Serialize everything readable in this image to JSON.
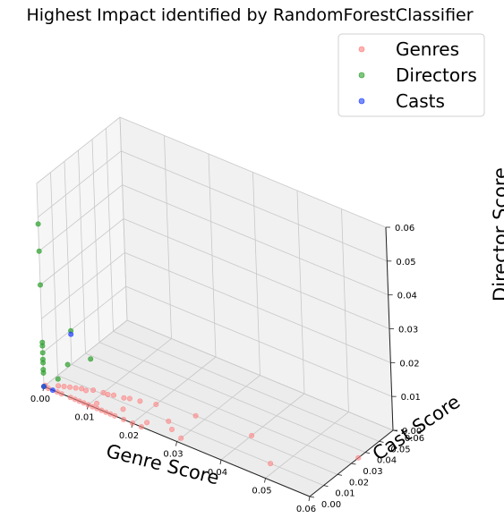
{
  "chart_data": {
    "type": "scatter",
    "title": "Highest Impact identified by RandomForestClassifier",
    "xlabel": "Genre Score",
    "ylabel": "Cast Score",
    "zlabel": "Director Score",
    "xlim": [
      0,
      0.06
    ],
    "ylim": [
      0,
      0.06
    ],
    "zlim": [
      0,
      0.06
    ],
    "xticks": [
      "0.00",
      "0.01",
      "0.02",
      "0.03",
      "0.04",
      "0.05",
      "0.06"
    ],
    "yticks": [
      "0.00",
      "0.01",
      "0.02",
      "0.03",
      "0.04",
      "0.05",
      "0.06"
    ],
    "zticks": [
      "0.00",
      "0.01",
      "0.02",
      "0.03",
      "0.04",
      "0.05",
      "0.06"
    ],
    "grid": true,
    "legend_position": "top-right",
    "series": [
      {
        "name": "Genres",
        "color": "#ff7f7f",
        "points": [
          {
            "x": 0.0,
            "y": 0.0,
            "z": 0.0
          },
          {
            "x": 0.0,
            "y": 0.001,
            "z": 0.0
          },
          {
            "x": 0.001,
            "y": 0.0,
            "z": 0.0
          },
          {
            "x": 0.003,
            "y": 0.0,
            "z": 0.0
          },
          {
            "x": 0.004,
            "y": 0.0,
            "z": 0.0
          },
          {
            "x": 0.006,
            "y": 0.0,
            "z": 0.0
          },
          {
            "x": 0.007,
            "y": 0.0,
            "z": 0.0
          },
          {
            "x": 0.008,
            "y": 0.0,
            "z": 0.0
          },
          {
            "x": 0.009,
            "y": 0.0,
            "z": 0.0
          },
          {
            "x": 0.01,
            "y": 0.0,
            "z": 0.0
          },
          {
            "x": 0.011,
            "y": 0.0,
            "z": 0.0
          },
          {
            "x": 0.012,
            "y": 0.0,
            "z": 0.0
          },
          {
            "x": 0.013,
            "y": 0.0,
            "z": 0.0
          },
          {
            "x": 0.014,
            "y": 0.0,
            "z": 0.0
          },
          {
            "x": 0.015,
            "y": 0.0,
            "z": 0.0
          },
          {
            "x": 0.016,
            "y": 0.0,
            "z": 0.0
          },
          {
            "x": 0.018,
            "y": 0.0,
            "z": 0.0
          },
          {
            "x": 0.02,
            "y": 0.0,
            "z": 0.0
          },
          {
            "x": 0.022,
            "y": 0.0,
            "z": 0.0
          },
          {
            "x": 0.002,
            "y": 0.004,
            "z": 0.0
          },
          {
            "x": 0.003,
            "y": 0.005,
            "z": 0.0
          },
          {
            "x": 0.004,
            "y": 0.006,
            "z": 0.0
          },
          {
            "x": 0.005,
            "y": 0.007,
            "z": 0.0
          },
          {
            "x": 0.006,
            "y": 0.008,
            "z": 0.0
          },
          {
            "x": 0.007,
            "y": 0.008,
            "z": 0.0
          },
          {
            "x": 0.008,
            "y": 0.01,
            "z": 0.0
          },
          {
            "x": 0.01,
            "y": 0.011,
            "z": 0.0
          },
          {
            "x": 0.011,
            "y": 0.011,
            "z": 0.0
          },
          {
            "x": 0.012,
            "y": 0.012,
            "z": 0.0
          },
          {
            "x": 0.014,
            "y": 0.013,
            "z": 0.0
          },
          {
            "x": 0.015,
            "y": 0.014,
            "z": 0.0
          },
          {
            "x": 0.017,
            "y": 0.015,
            "z": 0.0
          },
          {
            "x": 0.02,
            "y": 0.017,
            "z": 0.0
          },
          {
            "x": 0.011,
            "y": 0.003,
            "z": 0.0
          },
          {
            "x": 0.016,
            "y": 0.006,
            "z": 0.0
          },
          {
            "x": 0.022,
            "y": 0.004,
            "z": 0.0
          },
          {
            "x": 0.025,
            "y": 0.01,
            "z": 0.0
          },
          {
            "x": 0.027,
            "y": 0.006,
            "z": 0.0
          },
          {
            "x": 0.03,
            "y": 0.003,
            "z": 0.0
          },
          {
            "x": 0.028,
            "y": 0.02,
            "z": 0.0
          },
          {
            "x": 0.04,
            "y": 0.022,
            "z": 0.0
          },
          {
            "x": 0.048,
            "y": 0.01,
            "z": 0.0
          },
          {
            "x": 0.06,
            "y": 0.035,
            "z": 0.0
          }
        ]
      },
      {
        "name": "Directors",
        "color": "#2ca02c",
        "points": [
          {
            "x": 0.0,
            "y": 0.0,
            "z": 0.048
          },
          {
            "x": 0.0,
            "y": 0.0,
            "z": 0.04
          },
          {
            "x": 0.0,
            "y": 0.0,
            "z": 0.03
          },
          {
            "x": 0.004,
            "y": 0.008,
            "z": 0.016
          },
          {
            "x": 0.007,
            "y": 0.012,
            "z": 0.008
          },
          {
            "x": 0.0,
            "y": 0.0,
            "z": 0.013
          },
          {
            "x": 0.0,
            "y": 0.0,
            "z": 0.012
          },
          {
            "x": 0.0,
            "y": 0.0,
            "z": 0.01
          },
          {
            "x": 0.0,
            "y": 0.0,
            "z": 0.008
          },
          {
            "x": 0.0,
            "y": 0.0,
            "z": 0.007
          },
          {
            "x": 0.0,
            "y": 0.0,
            "z": 0.005
          },
          {
            "x": 0.0,
            "y": 0.0,
            "z": 0.004
          },
          {
            "x": 0.002,
            "y": 0.004,
            "z": 0.002
          },
          {
            "x": 0.004,
            "y": 0.005,
            "z": 0.007
          },
          {
            "x": 0.0,
            "y": 0.0,
            "z": 0.0
          }
        ]
      },
      {
        "name": "Casts",
        "color": "#1f3fff",
        "points": [
          {
            "x": 0.004,
            "y": 0.008,
            "z": 0.015
          },
          {
            "x": 0.0,
            "y": 0.0,
            "z": 0.0
          },
          {
            "x": 0.002,
            "y": 0.0,
            "z": 0.0
          }
        ]
      }
    ]
  }
}
